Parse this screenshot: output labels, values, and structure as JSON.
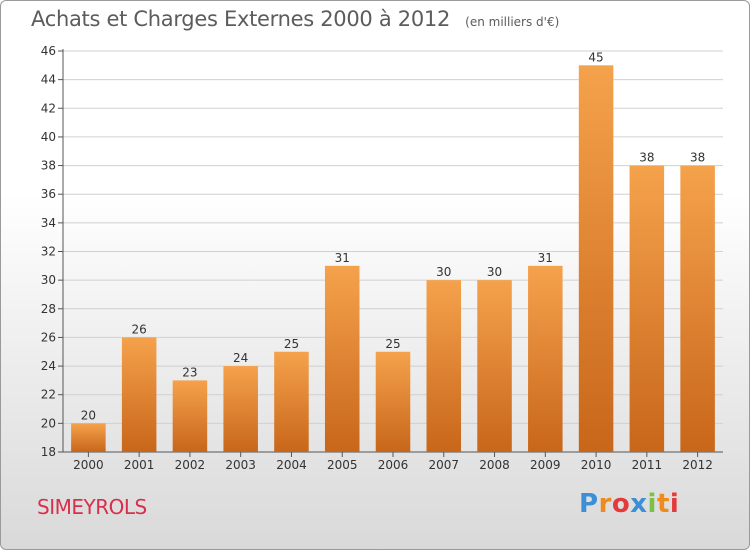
{
  "header": {
    "title": "Achats et Charges Externes 2000 à 2012",
    "subtitle": "(en milliers d'€)"
  },
  "footer": {
    "commune": "SIMEYROLS",
    "logo": {
      "letters": [
        "P",
        "r",
        "o",
        "x",
        "i",
        "t",
        "i"
      ],
      "colors": [
        "#3a8fd6",
        "#f08a1c",
        "#e33b3b",
        "#3a8fd6",
        "#7bc143",
        "#f08a1c",
        "#e33b3b"
      ]
    }
  },
  "colors": {
    "bar_light": "#f5a24c",
    "bar_dark": "#c8661a",
    "grid": "#d0d0d0",
    "text": "#333333"
  },
  "chart_data": {
    "type": "bar",
    "title": "Achats et Charges Externes 2000 à 2012",
    "subtitle": "(en milliers d'€)",
    "categories": [
      "2000",
      "2001",
      "2002",
      "2003",
      "2004",
      "2005",
      "2006",
      "2007",
      "2008",
      "2009",
      "2010",
      "2011",
      "2012"
    ],
    "values": [
      20,
      26,
      23,
      24,
      25,
      31,
      25,
      30,
      30,
      31,
      45,
      38,
      38
    ],
    "ylim": [
      18,
      46
    ],
    "yticks": [
      18,
      20,
      22,
      24,
      26,
      28,
      30,
      32,
      34,
      36,
      38,
      40,
      42,
      44,
      46
    ],
    "grid": true,
    "data_labels": true
  }
}
